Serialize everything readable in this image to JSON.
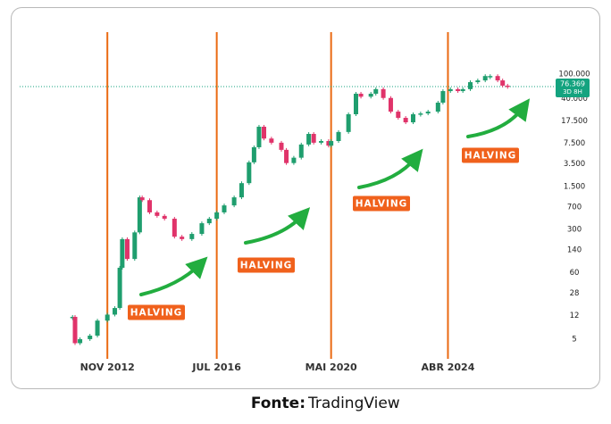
{
  "chart_data": {
    "type": "candlestick",
    "x": [
      "2011-09",
      "2011-10",
      "2011-12",
      "2012-04",
      "2012-07",
      "2012-11",
      "2013-02",
      "2013-04",
      "2013-05",
      "2013-07",
      "2013-10",
      "2013-12",
      "2014-01",
      "2014-04",
      "2014-07",
      "2014-10",
      "2015-02",
      "2015-05",
      "2015-09",
      "2016-01",
      "2016-04",
      "2016-07",
      "2016-10",
      "2017-02",
      "2017-05",
      "2017-08",
      "2017-10",
      "2017-12",
      "2018-02",
      "2018-05",
      "2018-09",
      "2018-11",
      "2019-02",
      "2019-05",
      "2019-08",
      "2019-10",
      "2020-01",
      "2020-04",
      "2020-05",
      "2020-08",
      "2020-12",
      "2021-03",
      "2021-05",
      "2021-09",
      "2021-11",
      "2022-02",
      "2022-05",
      "2022-08",
      "2022-11",
      "2023-02",
      "2023-05",
      "2023-08",
      "2023-12",
      "2024-02",
      "2024-05",
      "2024-08",
      "2024-10",
      "2025-01",
      "2025-04",
      "2025-07",
      "2025-09",
      "2025-12",
      "2026-02",
      "2026-04"
    ],
    "series": [
      {
        "values": [
          11.5,
          4.3,
          5,
          5.7,
          10,
          12.5,
          16,
          72,
          210,
          100,
          270,
          1000,
          900,
          570,
          500,
          450,
          230,
          210,
          255,
          380,
          450,
          570,
          740,
          1000,
          1700,
          3700,
          6500,
          14000,
          9000,
          7700,
          5900,
          3600,
          4400,
          7200,
          10700,
          7700,
          8200,
          6900,
          8200,
          11500,
          22300,
          48000,
          43000,
          48000,
          57000,
          41000,
          24600,
          19500,
          16500,
          22300,
          23000,
          24600,
          34400,
          53000,
          57000,
          53000,
          57000,
          74000,
          79000,
          93000,
          93000,
          79000,
          65000,
          62000
        ]
      }
    ],
    "color_up": "#1f9e6e",
    "color_down": "#e0336a",
    "xlim": [
      "2009-11",
      "2027-07"
    ],
    "xticks": [
      {
        "value": "2012-11",
        "label": "NOV 2012"
      },
      {
        "value": "2016-07",
        "label": "JUL 2016"
      },
      {
        "value": "2020-05",
        "label": "MAI 2020"
      },
      {
        "value": "2024-04",
        "label": "ABR 2024"
      }
    ],
    "xtick_line_color": "#ea6a12",
    "ylim": [
      2.56,
      586000
    ],
    "log_y": true,
    "yticks": [
      {
        "value": 100000,
        "label": "100.000"
      },
      {
        "value": 40000,
        "label": "40.000"
      },
      {
        "value": 17500,
        "label": "17.500"
      },
      {
        "value": 7500,
        "label": "7.500"
      },
      {
        "value": 3500,
        "label": "3.500"
      },
      {
        "value": 1500,
        "label": "1.500"
      },
      700,
      300,
      140,
      60,
      28,
      12,
      5
    ],
    "last_price": {
      "value": 76369,
      "label": "76.369",
      "countdown": "3D 8H",
      "color": "#14a37f"
    },
    "annotations": [
      "HALVING",
      "HALVING",
      "HALVING",
      "HALVING"
    ],
    "annotation_color": "#f0611c"
  },
  "footer": {
    "label": "Fonte:",
    "name": "TradingView"
  }
}
